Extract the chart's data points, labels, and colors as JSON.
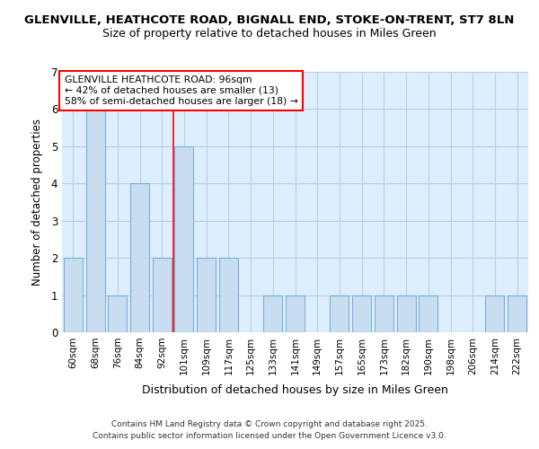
{
  "title1": "GLENVILLE, HEATHCOTE ROAD, BIGNALL END, STOKE-ON-TRENT, ST7 8LN",
  "title2": "Size of property relative to detached houses in Miles Green",
  "xlabel": "Distribution of detached houses by size in Miles Green",
  "ylabel": "Number of detached properties",
  "categories": [
    "60sqm",
    "68sqm",
    "76sqm",
    "84sqm",
    "92sqm",
    "101sqm",
    "109sqm",
    "117sqm",
    "125sqm",
    "133sqm",
    "141sqm",
    "149sqm",
    "157sqm",
    "165sqm",
    "173sqm",
    "182sqm",
    "190sqm",
    "198sqm",
    "206sqm",
    "214sqm",
    "222sqm"
  ],
  "values": [
    2,
    6,
    1,
    4,
    2,
    5,
    2,
    2,
    0,
    1,
    1,
    0,
    1,
    1,
    1,
    1,
    1,
    0,
    0,
    1,
    1
  ],
  "bar_color": "#c8ddf0",
  "bar_edge_color": "#7ab0d8",
  "red_line_index": 4.5,
  "annotation_title": "GLENVILLE HEATHCOTE ROAD: 96sqm",
  "annotation_line1": "← 42% of detached houses are smaller (13)",
  "annotation_line2": "58% of semi-detached houses are larger (18) →",
  "footnote1": "Contains HM Land Registry data © Crown copyright and database right 2025.",
  "footnote2": "Contains public sector information licensed under the Open Government Licence v3.0.",
  "ylim": [
    0,
    7
  ],
  "yticks": [
    0,
    1,
    2,
    3,
    4,
    5,
    6,
    7
  ],
  "fig_bg_color": "#ffffff",
  "plot_bg_color": "#ddeeff",
  "title_fontsize": 9.5,
  "subtitle_fontsize": 9
}
